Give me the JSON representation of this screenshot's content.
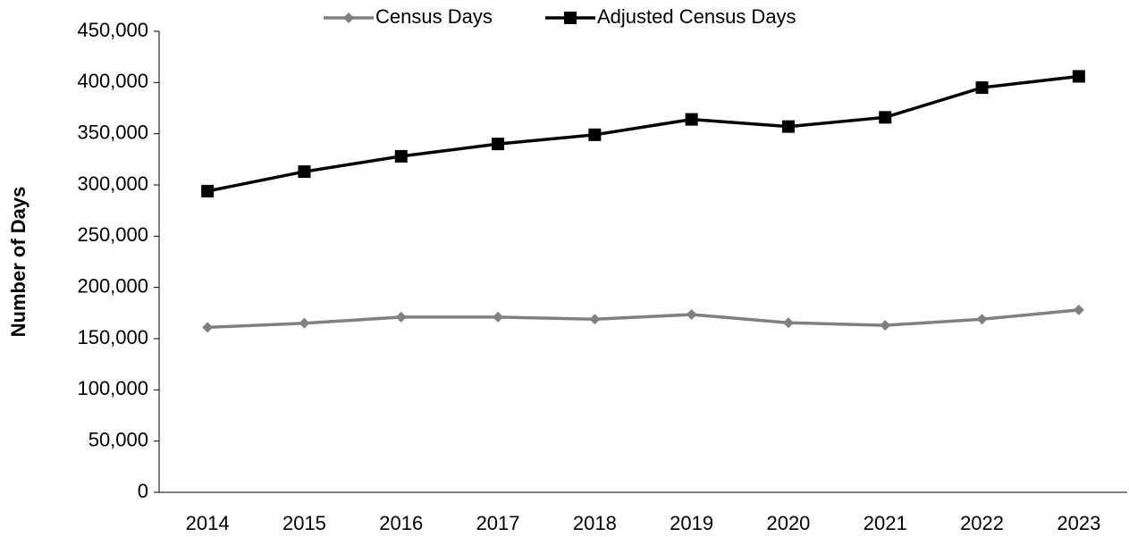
{
  "chart_data": {
    "type": "line",
    "y_label": "Number of Days",
    "categories": [
      "2014",
      "2015",
      "2016",
      "2017",
      "2018",
      "2019",
      "2020",
      "2021",
      "2022",
      "2023"
    ],
    "series": [
      {
        "name": "Census Days",
        "color": "#808080",
        "marker": "diamond",
        "values": [
          161000,
          165000,
          171000,
          171000,
          169000,
          173500,
          165500,
          163000,
          169000,
          178000
        ]
      },
      {
        "name": "Adjusted Census Days",
        "color": "#000000",
        "marker": "square",
        "values": [
          294000,
          313000,
          328000,
          340000,
          349000,
          364000,
          357000,
          366000,
          395000,
          406000
        ]
      }
    ],
    "ylim": [
      0,
      450000
    ],
    "yticks": [
      0,
      {
        "value": 50000,
        "label": "50,000"
      },
      {
        "value": 100000,
        "label": "100,000"
      },
      {
        "value": 150000,
        "label": "150,000"
      },
      {
        "value": 200000,
        "label": "200,000"
      },
      {
        "value": 250000,
        "label": "250,000"
      },
      {
        "value": 300000,
        "label": "300,000"
      },
      {
        "value": 350000,
        "label": "350,000"
      },
      {
        "value": 400000,
        "label": "400,000"
      },
      {
        "value": 450000,
        "label": "450,000"
      }
    ],
    "legend": "top"
  }
}
